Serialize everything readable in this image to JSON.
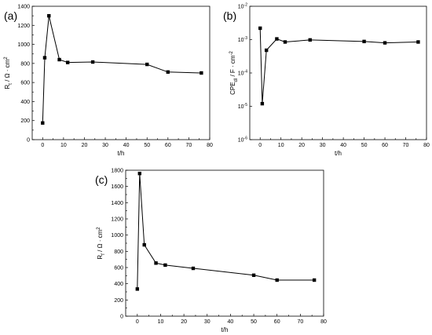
{
  "chart_data": [
    {
      "type": "line",
      "panel_label": "(a)",
      "xlabel": "t/h",
      "ylabel": "R_t / Ω · cm^2",
      "xlim": [
        -5,
        80
      ],
      "ylim": [
        0,
        1400
      ],
      "xticks": [
        "0",
        "10",
        "20",
        "30",
        "40",
        "50",
        "60",
        "70",
        "80"
      ],
      "yticks": [
        "0",
        "200",
        "400",
        "600",
        "800",
        "1000",
        "1200",
        "1400"
      ],
      "x": [
        0,
        1,
        3,
        8,
        12,
        24,
        50,
        60,
        76
      ],
      "values": [
        175,
        860,
        1300,
        840,
        810,
        815,
        790,
        710,
        700
      ],
      "scale": "linear"
    },
    {
      "type": "line",
      "panel_label": "(b)",
      "xlabel": "t/h",
      "ylabel": "CPE_dl / F · cm^-2",
      "xlim": [
        -5,
        80
      ],
      "ylim": [
        1e-06,
        0.01
      ],
      "xticks": [
        "0",
        "10",
        "20",
        "30",
        "40",
        "50",
        "60",
        "70",
        "80"
      ],
      "yticks": [
        "10^-6",
        "10^-5",
        "10^-4",
        "10^-3",
        "10^-2"
      ],
      "x": [
        0,
        1,
        3,
        8,
        12,
        24,
        50,
        60,
        76
      ],
      "values": [
        0.0022,
        1.2e-05,
        0.00048,
        0.00105,
        0.00085,
        0.00098,
        0.00088,
        0.0008,
        0.00085
      ],
      "scale": "log"
    },
    {
      "type": "line",
      "panel_label": "(c)",
      "xlabel": "t/h",
      "ylabel": "R_f / Ω · cm^2",
      "xlim": [
        -5,
        80
      ],
      "ylim": [
        0,
        1800
      ],
      "xticks": [
        "0",
        "10",
        "20",
        "30",
        "40",
        "50",
        "60",
        "70",
        "80"
      ],
      "yticks": [
        "0",
        "200",
        "400",
        "600",
        "800",
        "1000",
        "1200",
        "1400",
        "1600",
        "1800"
      ],
      "x": [
        0,
        1,
        3,
        8,
        12,
        24,
        50,
        60,
        76
      ],
      "values": [
        335,
        1760,
        880,
        655,
        630,
        590,
        505,
        445,
        445
      ],
      "scale": "linear"
    }
  ]
}
